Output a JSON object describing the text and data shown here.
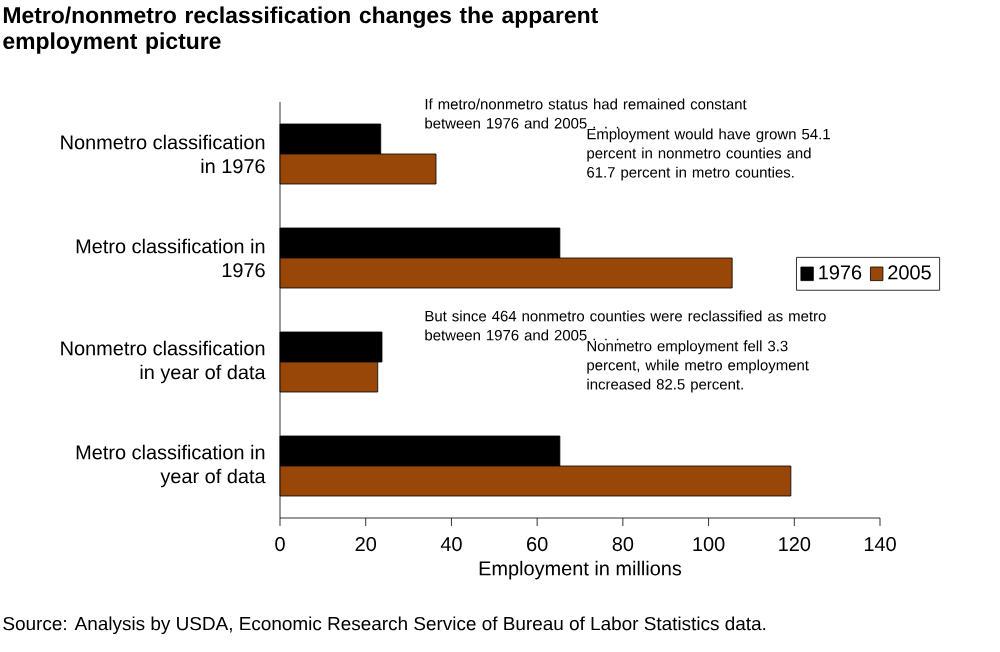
{
  "chart_data": {
    "type": "bar",
    "orientation": "horizontal",
    "title": "Metro/nonmetro reclassification changes the apparent employment picture",
    "categories": [
      "Nonmetro classification in 1976",
      "Metro classification in 1976",
      "Nonmetro classification in year of data",
      "Metro classification in year of data"
    ],
    "series": [
      {
        "name": "1976",
        "color": "#000000",
        "values": [
          23.5,
          65.3,
          23.8,
          65.3
        ]
      },
      {
        "name": "2005",
        "color": "#994708",
        "values": [
          36.4,
          105.5,
          22.8,
          119.2
        ]
      }
    ],
    "xlabel": "Employment in millions",
    "xlim": [
      0,
      140
    ],
    "xticks": [
      0,
      20,
      40,
      60,
      80,
      100,
      120,
      140
    ],
    "legend": "right",
    "grid": false,
    "annotations": [
      "If metro/nonmetro status had remained constant between 1976 and 2005 . . .",
      "Employment would have grown 54.1 percent in nonmetro counties and 61.7 percent in metro counties.",
      "But since 464 nonmetro counties were reclassified as metro between 1976 and 2005 . . .",
      "Nonmetro employment fell 3.3 percent, while metro employment increased 82.5 percent.",
      "Source:  Analysis by USDA, Economic Research Service of Bureau of Labor Statistics data."
    ]
  }
}
